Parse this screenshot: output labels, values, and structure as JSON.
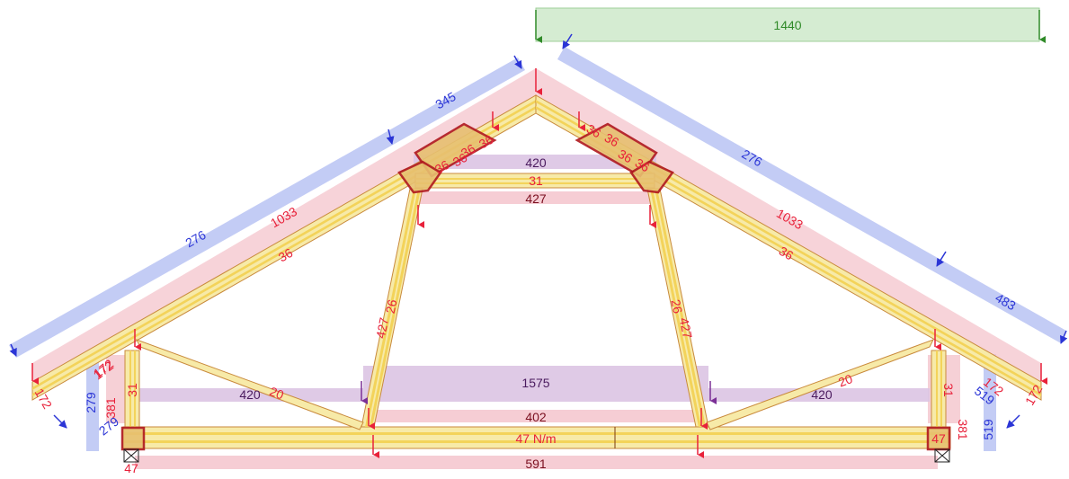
{
  "colors": {
    "timber_fill": "#f7eaa8",
    "timber_band": "#f3d35a",
    "timber_edge": "#c98a3c",
    "dead_band": "#f4c4cc",
    "dead_text": "#e8213a",
    "wind_band": "#b9c3f3",
    "wind_text": "#2b35d6",
    "snow_band": "#d5ecd2",
    "snow_text": "#2f8a28",
    "imposed_band": "#dcc4e3",
    "imposed_text": "#7b2f96",
    "plate": "#b0181e"
  },
  "loads": {
    "snow": "1440",
    "wind_left_top": "345",
    "wind_left_rafter": "276",
    "wind_right_rafter": "276",
    "wind_right_lower": "483",
    "wind_left_post": "279",
    "wind_left_post_low": "279",
    "wind_right_post": "519",
    "wind_right_post_low": "519",
    "dead_left_rafter": "1033",
    "dead_right_rafter": "1033",
    "dead_left_eave": "172",
    "dead_left_eave_inner": "172",
    "dead_right_eave": "172",
    "dead_right_eave_inner": "172",
    "dead_left_post": "381",
    "dead_right_post": "381",
    "dead_collar_bottom": "427",
    "dead_ceiling_top": "402",
    "dead_tie_bottom": "591",
    "dead_support_left": "47",
    "imposed_collar": "420",
    "imposed_ceiling": "1575",
    "imposed_left_attic": "420",
    "imposed_right_attic": "420"
  },
  "members": {
    "rafter_left": "36",
    "rafter_right": "36",
    "plate_left_a": "36",
    "plate_left_b": "36",
    "plate_left_c": "36",
    "plate_left_d": "36",
    "plate_right_a": "36",
    "plate_right_b": "36",
    "plate_right_c": "36",
    "plate_right_d": "36",
    "collar": "31",
    "strut_left": "26",
    "strut_right": "26",
    "strut_left_load": "427",
    "strut_right_load": "427",
    "web_left": "20",
    "web_right": "20",
    "post_left": "31",
    "post_right": "31",
    "post_left_small": "172",
    "tie_self_weight": "47 N/m",
    "support_right": "47"
  }
}
